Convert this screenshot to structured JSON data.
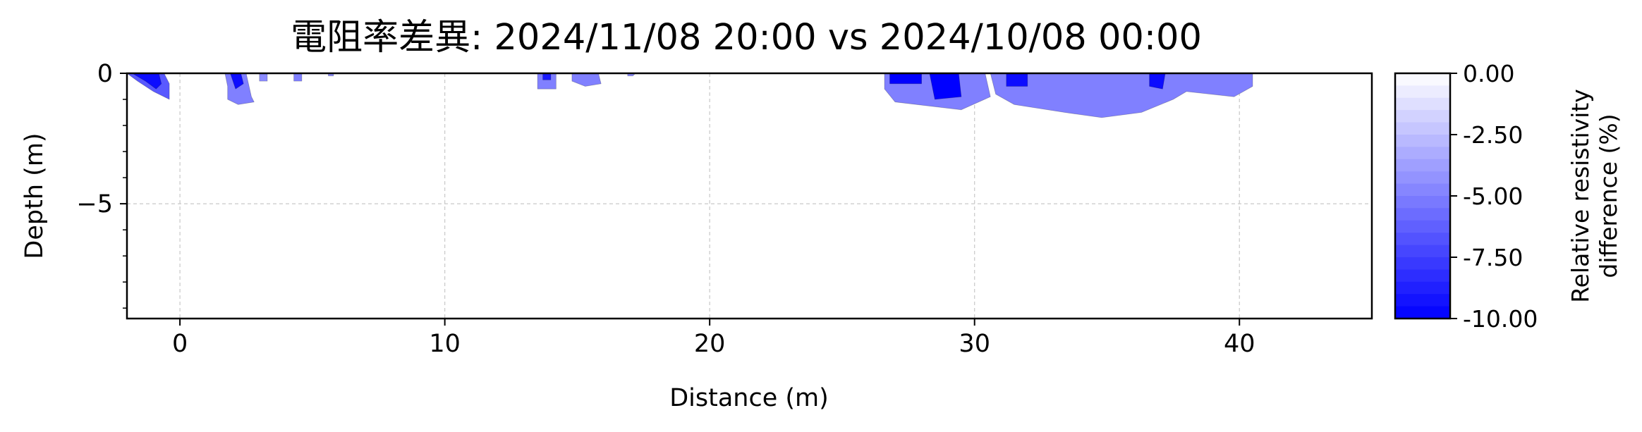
{
  "chart_data": {
    "type": "heatmap",
    "title": "電阻率差異: 2024/11/08 20:00 vs 2024/10/08 00:00",
    "xlabel": "Distance (m)",
    "ylabel": "Depth (m)",
    "xlim": [
      -2,
      45
    ],
    "ylim": [
      -9.4,
      0
    ],
    "x_ticks": [
      0,
      10,
      20,
      30,
      40
    ],
    "x_tick_labels": [
      "0",
      "10",
      "20",
      "30",
      "40"
    ],
    "y_ticks": [
      0,
      -5
    ],
    "y_tick_labels": [
      "0",
      "−5"
    ],
    "y_minor_ticks": [
      -1,
      -2,
      -3,
      -4,
      -6,
      -7,
      -8,
      -9
    ],
    "grid": true,
    "colorbar": {
      "label_line1": "Relative resistivity",
      "label_line2": "difference (%)",
      "range": [
        -10,
        0
      ],
      "ticks": [
        0,
        -2.5,
        -5,
        -7.5,
        -10
      ],
      "tick_labels": [
        "0.00",
        "-2.50",
        "-5.00",
        "-7.50",
        "-10.00"
      ],
      "levels": 20,
      "color_min": "#0000ff",
      "color_max": "#ffffff"
    },
    "anomalies": [
      {
        "pts": [
          [
            -2.0,
            0
          ],
          [
            -0.6,
            0
          ],
          [
            -0.4,
            -0.4
          ],
          [
            -0.4,
            -1.0
          ],
          [
            -1.0,
            -0.7
          ],
          [
            -1.6,
            -0.3
          ]
        ],
        "value": -6.5
      },
      {
        "pts": [
          [
            -1.8,
            0
          ],
          [
            -0.8,
            0
          ],
          [
            -0.7,
            -0.4
          ],
          [
            -0.9,
            -0.6
          ],
          [
            -1.3,
            -0.3
          ]
        ],
        "value": -9.5
      },
      {
        "pts": [
          [
            1.7,
            0
          ],
          [
            2.5,
            0
          ],
          [
            2.7,
            -0.9
          ],
          [
            2.8,
            -1.1
          ],
          [
            2.2,
            -1.2
          ],
          [
            1.8,
            -1.0
          ],
          [
            1.8,
            -0.5
          ]
        ],
        "value": -5.0
      },
      {
        "pts": [
          [
            1.9,
            0
          ],
          [
            2.3,
            0
          ],
          [
            2.4,
            -0.4
          ],
          [
            2.1,
            -0.6
          ]
        ],
        "value": -9.5
      },
      {
        "pts": [
          [
            3.0,
            0
          ],
          [
            3.3,
            0
          ],
          [
            3.3,
            -0.3
          ],
          [
            3.0,
            -0.3
          ]
        ],
        "value": -4.5
      },
      {
        "pts": [
          [
            4.3,
            0
          ],
          [
            4.6,
            0
          ],
          [
            4.6,
            -0.3
          ],
          [
            4.3,
            -0.3
          ]
        ],
        "value": -5.0
      },
      {
        "pts": [
          [
            5.6,
            0
          ],
          [
            5.8,
            0
          ],
          [
            5.8,
            -0.1
          ],
          [
            5.6,
            -0.1
          ]
        ],
        "value": -4.5
      },
      {
        "pts": [
          [
            13.5,
            0
          ],
          [
            14.2,
            0
          ],
          [
            14.2,
            -0.6
          ],
          [
            13.5,
            -0.6
          ]
        ],
        "value": -5.0
      },
      {
        "pts": [
          [
            13.7,
            0
          ],
          [
            14.0,
            0
          ],
          [
            14.0,
            -0.25
          ],
          [
            13.7,
            -0.25
          ]
        ],
        "value": -9.0
      },
      {
        "pts": [
          [
            14.8,
            0
          ],
          [
            15.8,
            0
          ],
          [
            15.9,
            -0.4
          ],
          [
            15.3,
            -0.5
          ],
          [
            14.8,
            -0.3
          ]
        ],
        "value": -5.0
      },
      {
        "pts": [
          [
            16.9,
            0
          ],
          [
            17.2,
            0
          ],
          [
            17.1,
            -0.1
          ],
          [
            16.9,
            -0.1
          ]
        ],
        "value": -4.5
      },
      {
        "pts": [
          [
            26.6,
            0
          ],
          [
            30.4,
            0
          ],
          [
            30.6,
            -0.9
          ],
          [
            29.5,
            -1.4
          ],
          [
            27.0,
            -1.1
          ],
          [
            26.6,
            -0.6
          ]
        ],
        "value": -5.0
      },
      {
        "pts": [
          [
            26.8,
            0
          ],
          [
            28.0,
            0
          ],
          [
            28.0,
            -0.4
          ],
          [
            26.8,
            -0.4
          ]
        ],
        "value": -10.0
      },
      {
        "pts": [
          [
            28.3,
            0
          ],
          [
            29.4,
            0
          ],
          [
            29.5,
            -0.9
          ],
          [
            28.5,
            -1.0
          ]
        ],
        "value": -10.0
      },
      {
        "pts": [
          [
            30.6,
            0
          ],
          [
            40.5,
            0
          ],
          [
            40.5,
            -0.5
          ],
          [
            39.8,
            -0.9
          ],
          [
            38.0,
            -0.7
          ],
          [
            37.5,
            -1.0
          ],
          [
            36.3,
            -1.5
          ],
          [
            34.8,
            -1.7
          ],
          [
            33.4,
            -1.5
          ],
          [
            31.5,
            -1.2
          ],
          [
            30.8,
            -0.8
          ]
        ],
        "value": -5.0
      },
      {
        "pts": [
          [
            31.2,
            0
          ],
          [
            32.0,
            0
          ],
          [
            32.0,
            -0.5
          ],
          [
            31.2,
            -0.5
          ]
        ],
        "value": -9.5
      },
      {
        "pts": [
          [
            36.6,
            0
          ],
          [
            37.2,
            0
          ],
          [
            37.1,
            -0.6
          ],
          [
            36.6,
            -0.5
          ]
        ],
        "value": -9.5
      }
    ]
  }
}
